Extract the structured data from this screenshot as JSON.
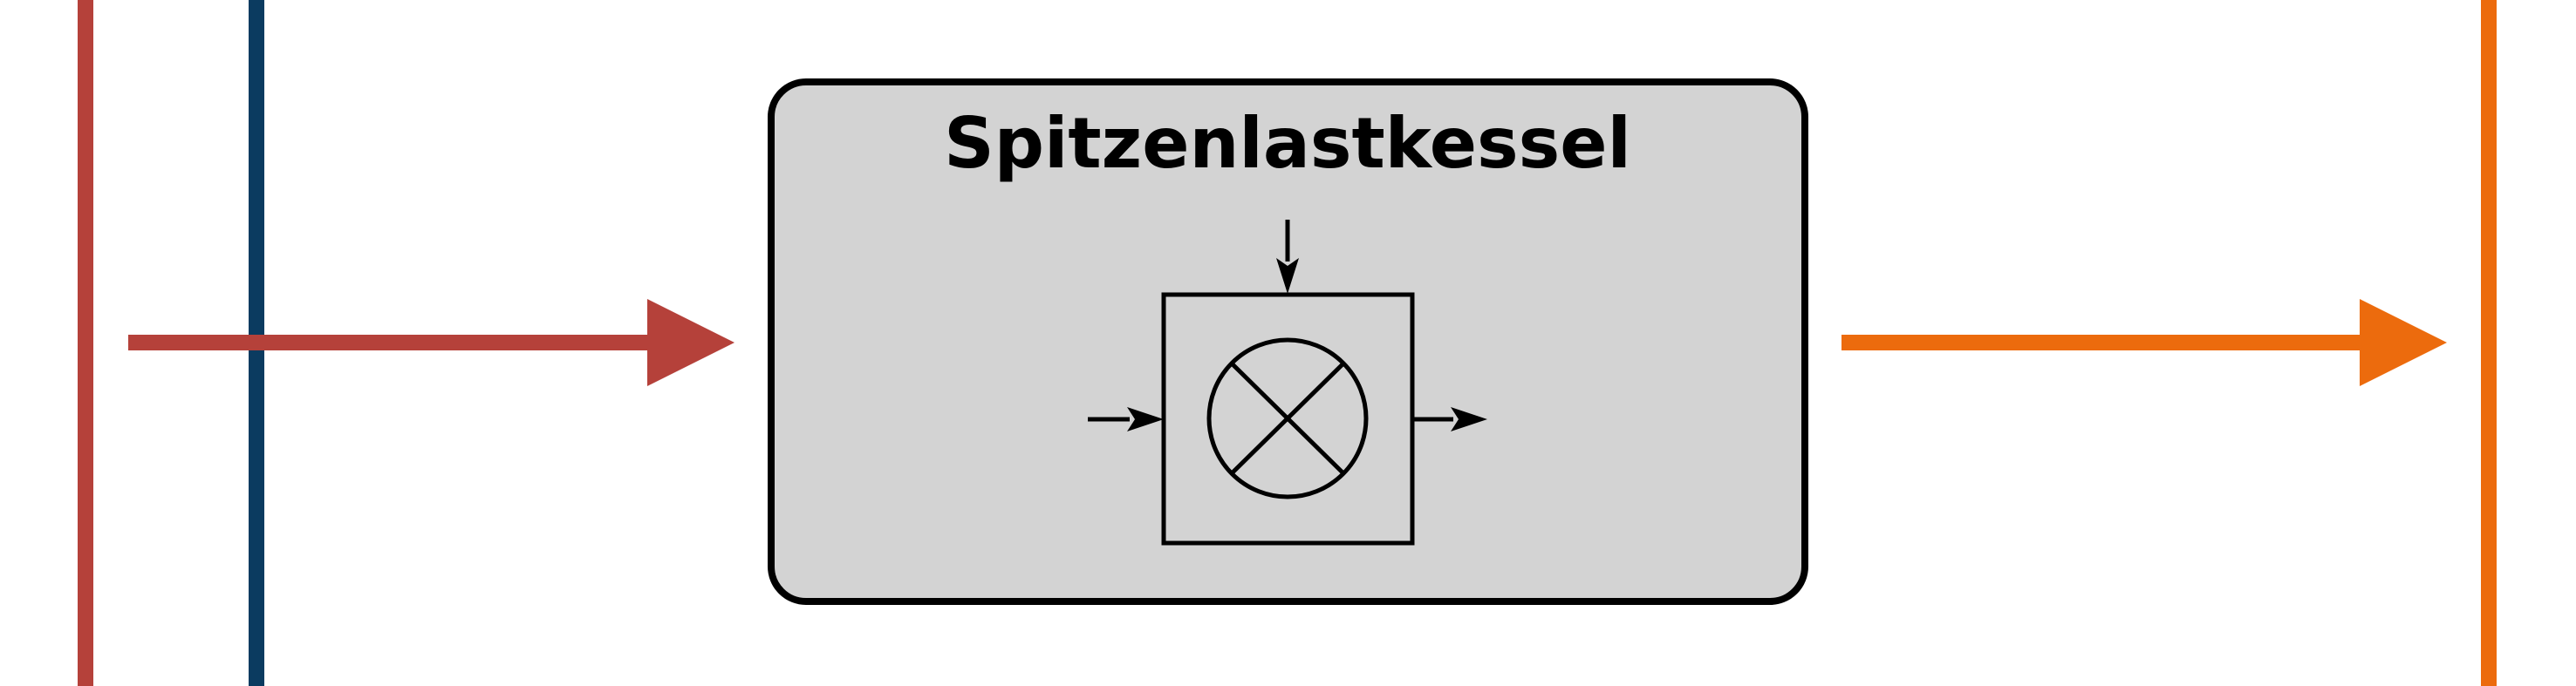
{
  "diagram": {
    "component": {
      "title": "Spitzenlastkessel"
    },
    "colors": {
      "background": "#ffffff",
      "component_fill": "#d3d3d3",
      "component_border": "#000000",
      "inlet_line_red": "#b5413a",
      "supply_line_blue": "#0b3b60",
      "outlet_line_orange": "#ec6b0d",
      "symbol_stroke": "#000000",
      "title_text": "#000000"
    },
    "icons": {
      "inlet_arrow": "right-arrow",
      "outlet_arrow": "right-arrow",
      "boiler_symbol": "crossed-circle-in-square"
    }
  }
}
